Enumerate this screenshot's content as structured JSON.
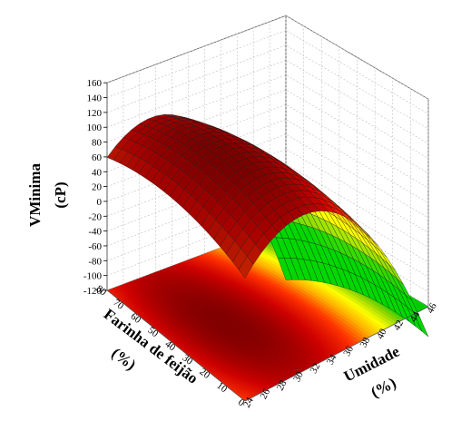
{
  "chart_data": {
    "type": "surface",
    "surface_function": "VMinima = f(Umidade, Farinha de feijão)",
    "x_label": "Umidade",
    "x_unit": "(%)",
    "x_ticks": [
      "24",
      "26",
      "28",
      "30",
      "32",
      "34",
      "36",
      "38",
      "40",
      "42",
      "44",
      "46"
    ],
    "x_range": [
      24,
      46
    ],
    "y_label": "Farinha de feijão",
    "y_unit": "(%)",
    "y_ticks": [
      "0",
      "10",
      "20",
      "30",
      "40",
      "50",
      "60",
      "70",
      "80"
    ],
    "y_range": [
      0,
      80
    ],
    "z_label": "VMinima",
    "z_unit": "(cP)",
    "z_ticks": [
      "-120",
      "-100",
      "-80",
      "-60",
      "-40",
      "-20",
      "0",
      "20",
      "40",
      "60",
      "80",
      "100",
      "120",
      "140",
      "160"
    ],
    "z_range": [
      -120,
      160
    ],
    "surface_samples": [
      {
        "umidade": 24,
        "farinha": 0,
        "vminima": 40
      },
      {
        "umidade": 24,
        "farinha": 80,
        "vminima": 32
      },
      {
        "umidade": 30,
        "farinha": 40,
        "vminima": 112
      },
      {
        "umidade": 36,
        "farinha": 40,
        "vminima": 100
      },
      {
        "umidade": 46,
        "farinha": 0,
        "vminima": -20
      },
      {
        "umidade": 46,
        "farinha": 80,
        "vminima": -85
      }
    ],
    "colormap": [
      "#00cc00",
      "#8ed400",
      "#ffff00",
      "#ffb000",
      "#ff3300",
      "#cc0000",
      "#7a0000"
    ],
    "grid": true,
    "projected_contour_on_floor": true
  }
}
